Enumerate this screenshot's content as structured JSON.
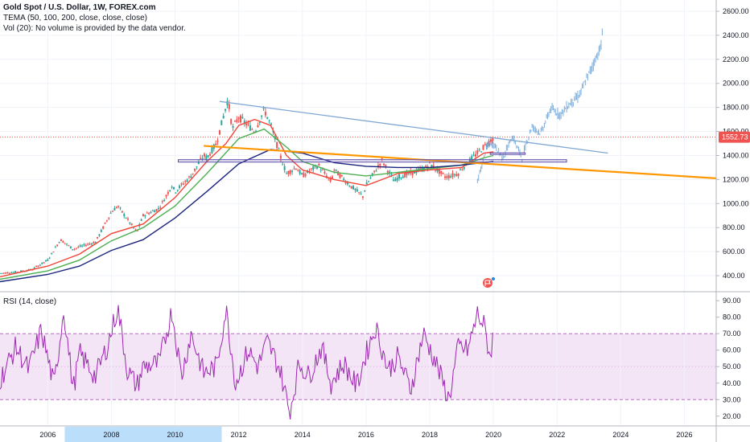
{
  "legend": {
    "symbol": "Gold Spot / U.S. Dollar, 1W, FOREX.com",
    "tema": "TEMA (50, 100, 200, close, close, close)",
    "vol": "Vol (20): No volume is provided by the data vendor.",
    "rsi": "RSI (14, close)"
  },
  "price_tag": "1552.73",
  "colors": {
    "up": "#26a69a",
    "down": "#ef5350",
    "tema50": "#f44336",
    "tema100": "#4caf50",
    "tema200": "#1a237e",
    "projection": "#5b9bd5",
    "rsi": "#9c27b0",
    "rsi_band": "#f3e5f5",
    "trend_blue": "#7fa7d4",
    "trend_orange": "#ff9800",
    "box": "#5c4ca8"
  },
  "icon": "flag-earnings-icon",
  "chart_data": [
    {
      "type": "line",
      "title": "Gold Spot / U.S. Dollar, 1W, FOREX.com",
      "y_ticks": [
        400,
        600,
        800,
        1000,
        1200,
        1400,
        1600,
        1800,
        2000,
        2200,
        2400,
        2600
      ],
      "ylim": [
        300,
        2640
      ],
      "xlim": [
        2004.5,
        2027.0
      ],
      "x_ticks": [
        2006,
        2008,
        2010,
        2012,
        2014,
        2016,
        2018,
        2020,
        2022,
        2024,
        2026
      ],
      "highlight_x": [
        2008,
        2010
      ],
      "last_price": 1552.73,
      "series": [
        {
          "name": "price",
          "x": [
            2004.5,
            2005.0,
            2005.5,
            2006.0,
            2006.4,
            2006.8,
            2007.0,
            2007.5,
            2008.0,
            2008.2,
            2008.8,
            2009.0,
            2009.5,
            2009.9,
            2010.0,
            2010.5,
            2010.9,
            2011.0,
            2011.3,
            2011.66,
            2011.8,
            2012.0,
            2012.5,
            2012.8,
            2013.0,
            2013.3,
            2013.5,
            2013.8,
            2014.0,
            2014.5,
            2014.9,
            2015.0,
            2015.5,
            2015.9,
            2016.0,
            2016.5,
            2016.9,
            2017.0,
            2017.5,
            2017.9,
            2018.0,
            2018.5,
            2018.9,
            2019.0,
            2019.5,
            2019.8,
            2020.0
          ],
          "y": [
            420,
            430,
            450,
            530,
            700,
            620,
            640,
            680,
            930,
            980,
            760,
            900,
            960,
            1150,
            1100,
            1230,
            1400,
            1380,
            1500,
            1870,
            1620,
            1720,
            1600,
            1780,
            1660,
            1400,
            1250,
            1300,
            1230,
            1320,
            1180,
            1280,
            1150,
            1060,
            1150,
            1360,
            1180,
            1220,
            1260,
            1300,
            1330,
            1220,
            1250,
            1290,
            1420,
            1500,
            1550
          ]
        },
        {
          "name": "projection",
          "x": [
            2019.5,
            2019.8,
            2020.0,
            2020.3,
            2020.6,
            2020.9,
            2021.2,
            2021.5,
            2021.8,
            2022.1,
            2022.4,
            2022.7,
            2023.0,
            2023.2,
            2023.4,
            2023.45
          ],
          "y": [
            1180,
            1480,
            1500,
            1380,
            1560,
            1380,
            1640,
            1590,
            1790,
            1740,
            1830,
            1900,
            2080,
            2200,
            2320,
            2530
          ]
        },
        {
          "name": "TEMA 50",
          "x": [
            2004.5,
            2006,
            2007,
            2008,
            2009,
            2010,
            2011,
            2011.6,
            2012,
            2012.5,
            2013,
            2013.5,
            2014,
            2015,
            2016,
            2017,
            2018,
            2019,
            2019.7,
            2020
          ],
          "y": [
            390,
            480,
            580,
            750,
            830,
            1050,
            1350,
            1500,
            1650,
            1700,
            1650,
            1400,
            1280,
            1200,
            1150,
            1250,
            1280,
            1300,
            1420,
            1430
          ]
        },
        {
          "name": "TEMA 100",
          "x": [
            2004.5,
            2006,
            2007,
            2008,
            2009,
            2010,
            2011,
            2012,
            2012.8,
            2013.5,
            2014,
            2015,
            2016,
            2017,
            2018,
            2019,
            2019.7,
            2020
          ],
          "y": [
            370,
            440,
            530,
            690,
            800,
            980,
            1250,
            1540,
            1620,
            1470,
            1350,
            1260,
            1230,
            1260,
            1290,
            1320,
            1380,
            1400
          ]
        },
        {
          "name": "TEMA 200",
          "x": [
            2004.5,
            2006,
            2007,
            2008,
            2009,
            2010,
            2011,
            2012,
            2013,
            2014,
            2015,
            2016,
            2017,
            2018,
            2019,
            2020
          ],
          "y": [
            350,
            410,
            480,
            610,
            700,
            880,
            1100,
            1330,
            1450,
            1420,
            1340,
            1310,
            1300,
            1300,
            1320,
            1350
          ]
        },
        {
          "name": "blue trendline",
          "x": [
            2011.4,
            2023.6
          ],
          "y": [
            1850,
            1420
          ]
        },
        {
          "name": "orange trendline",
          "x": [
            2010.9,
            2027.0
          ],
          "y": [
            1480,
            1210
          ]
        }
      ],
      "boxes": [
        {
          "x": [
            2010.1,
            2022.3
          ],
          "y": [
            1345,
            1365
          ]
        },
        {
          "x": [
            2019.9,
            2021.0
          ],
          "y": [
            1410,
            1422
          ]
        }
      ]
    },
    {
      "type": "line",
      "title": "RSI (14, close)",
      "y_ticks": [
        20,
        30,
        40,
        50,
        60,
        70,
        80,
        90
      ],
      "ylim": [
        16,
        93
      ],
      "bands": [
        30,
        70
      ],
      "series": [
        {
          "name": "RSI",
          "x": [
            2004.5,
            2005.0,
            2005.4,
            2005.8,
            2006.2,
            2006.5,
            2006.8,
            2007.0,
            2007.5,
            2007.9,
            2008.2,
            2008.5,
            2008.8,
            2009.0,
            2009.5,
            2009.9,
            2010.2,
            2010.5,
            2010.9,
            2011.3,
            2011.6,
            2011.9,
            2012.3,
            2012.6,
            2012.9,
            2013.3,
            2013.6,
            2013.9,
            2014.2,
            2014.6,
            2014.9,
            2015.3,
            2015.7,
            2016.0,
            2016.3,
            2016.7,
            2017.0,
            2017.4,
            2017.8,
            2018.2,
            2018.6,
            2018.9,
            2019.2,
            2019.5,
            2019.7,
            2019.9,
            2020.0
          ],
          "y": [
            42,
            62,
            48,
            72,
            38,
            85,
            36,
            58,
            44,
            64,
            86,
            48,
            38,
            50,
            52,
            84,
            44,
            70,
            46,
            50,
            85,
            40,
            60,
            50,
            65,
            48,
            22,
            52,
            44,
            62,
            40,
            52,
            38,
            58,
            74,
            48,
            56,
            36,
            70,
            52,
            30,
            62,
            60,
            82,
            75,
            56,
            70
          ]
        }
      ]
    }
  ]
}
